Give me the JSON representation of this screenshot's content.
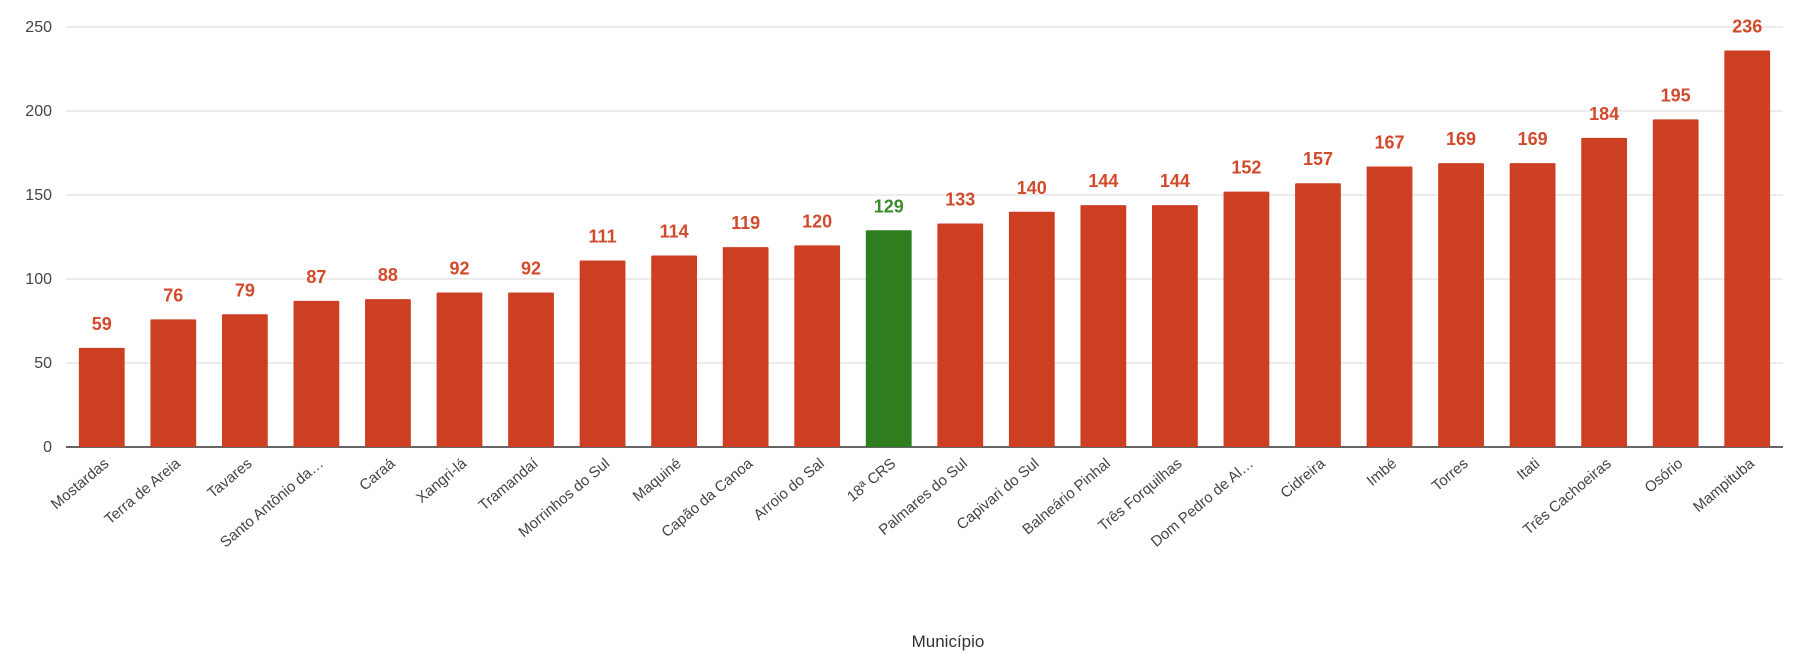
{
  "chart_data": {
    "type": "bar",
    "title": "",
    "xlabel": "Município",
    "ylabel": "",
    "ylim": [
      0,
      250
    ],
    "yticks": [
      0,
      50,
      100,
      150,
      200,
      250
    ],
    "grid": true,
    "legend": "none",
    "categories": [
      "Mostardas",
      "Terra de Areia",
      "Tavares",
      "Santo Antônio da…",
      "Caraá",
      "Xangri-lá",
      "Tramandaí",
      "Morrinhos do Sul",
      "Maquiné",
      "Capão da Canoa",
      "Arroio do Sal",
      "18ª CRS",
      "Palmares do Sul",
      "Capivari do Sul",
      "Balneário Pinhal",
      "Três Forquilhas",
      "Dom Pedro de Al…",
      "Cidreira",
      "Imbé",
      "Torres",
      "Itati",
      "Três Cachoeiras",
      "Osório",
      "Mampituba"
    ],
    "values": [
      59,
      76,
      79,
      87,
      88,
      92,
      92,
      111,
      114,
      119,
      120,
      129,
      133,
      140,
      144,
      144,
      152,
      157,
      167,
      169,
      169,
      184,
      195,
      236
    ],
    "value_labels": [
      "59",
      "76",
      "79",
      "87",
      "88",
      "92",
      "92",
      "111",
      "114",
      "119",
      "120",
      "129",
      "133",
      "140",
      "144",
      "144",
      "152",
      "157",
      "167",
      "169",
      "169",
      "184",
      "195",
      "236"
    ],
    "bar_colors": {
      "default": "#cc3f22",
      "highlight": "#2e7d1f",
      "highlight_category": "18ª CRS"
    },
    "label_colors": {
      "default": "#d24a2c",
      "highlight": "#3c8a2a"
    }
  }
}
